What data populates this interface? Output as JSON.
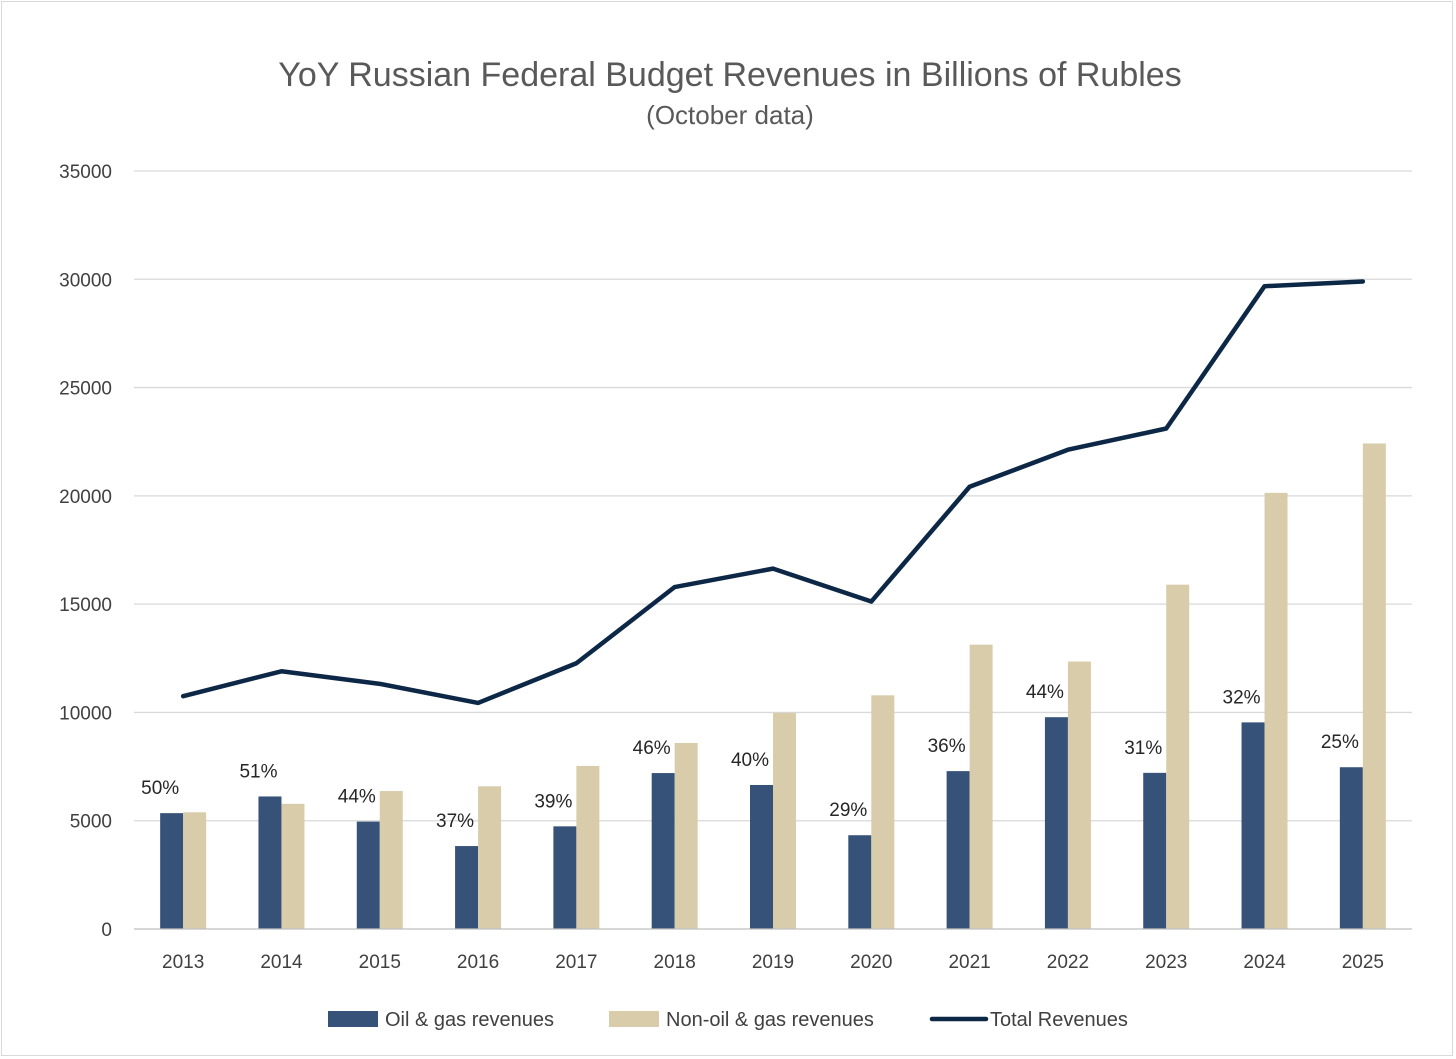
{
  "colors": {
    "oil": "#375278",
    "nonoil": "#d9ccaa",
    "total": "#0d2847",
    "grid": "#d9d9d9",
    "axis": "#bfbfbf"
  },
  "chart_data": {
    "type": "bar",
    "title": "YoY Russian Federal Budget Revenues in Billions of Rubles",
    "subtitle": "(October data)",
    "categories": [
      "2013",
      "2014",
      "2015",
      "2016",
      "2017",
      "2018",
      "2019",
      "2020",
      "2021",
      "2022",
      "2023",
      "2024",
      "2025"
    ],
    "ylim": [
      0,
      35000
    ],
    "yticks": [
      0,
      5000,
      10000,
      15000,
      20000,
      25000,
      30000,
      35000
    ],
    "grid": true,
    "legend_position": "bottom",
    "series": [
      {
        "name": "Oil & gas revenues",
        "kind": "bar",
        "values": [
          5350,
          6120,
          4960,
          3830,
          4740,
          7200,
          6650,
          4330,
          7290,
          9780,
          7210,
          9540,
          7470
        ],
        "labels": [
          "50%",
          "51%",
          "44%",
          "37%",
          "39%",
          "46%",
          "40%",
          "29%",
          "36%",
          "44%",
          "31%",
          "32%",
          "25%"
        ]
      },
      {
        "name": "Non-oil & gas revenues",
        "kind": "bar",
        "values": [
          5390,
          5780,
          6370,
          6590,
          7530,
          8590,
          9980,
          10790,
          13130,
          12350,
          15900,
          20140,
          22420
        ]
      },
      {
        "name": "Total Revenues",
        "kind": "line",
        "values": [
          10750,
          11900,
          11320,
          10440,
          12270,
          15790,
          16640,
          15120,
          20420,
          22130,
          23110,
          29680,
          29900
        ]
      }
    ]
  }
}
